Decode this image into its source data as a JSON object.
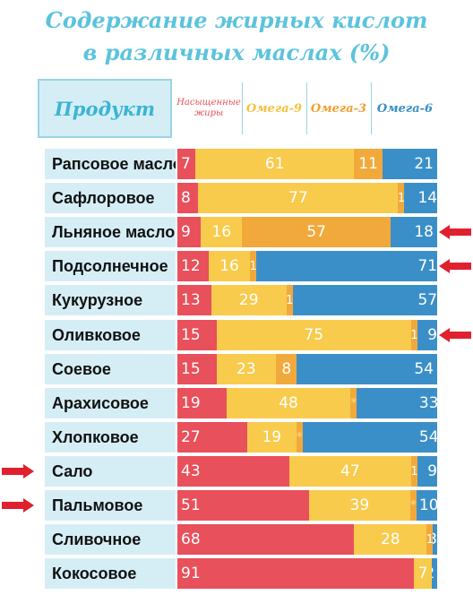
{
  "title_line1": "Содержание жирных кислот",
  "title_line2": "в различных маслах (%)",
  "headers": {
    "product": "Продукт",
    "saturated": "Насыщенные жиры",
    "omega9": "Омега-9",
    "omega3": "Омега-3",
    "omega6": "Омега-6"
  },
  "colors": {
    "saturated": "#e8505b",
    "omega9": "#f8cb4c",
    "omega3": "#f2a93b",
    "omega6": "#3a8fc8",
    "label_bg": "#d5eef6",
    "arrow": "#e0202e"
  },
  "chart_data": {
    "type": "bar",
    "stacked": true,
    "orientation": "horizontal",
    "categories": [
      "Рапсовое масло",
      "Сафлоровое",
      "Льняное масло",
      "Подсолнечное",
      "Кукурузное",
      "Оливковое",
      "Соевое",
      "Арахисовое",
      "Хлопковое",
      "Сало",
      "Пальмовое",
      "Сливочное",
      "Кокосовое"
    ],
    "series": [
      {
        "name": "Насыщенные жиры",
        "values": [
          7,
          8,
          9,
          12,
          13,
          15,
          15,
          19,
          27,
          43,
          51,
          68,
          91
        ]
      },
      {
        "name": "Омега-9",
        "values": [
          61,
          77,
          16,
          16,
          29,
          75,
          23,
          48,
          19,
          47,
          39,
          28,
          7
        ]
      },
      {
        "name": "Омега-3",
        "values": [
          11,
          1,
          57,
          1,
          1,
          1,
          8,
          0.5,
          0.5,
          1,
          0.5,
          1,
          0
        ]
      },
      {
        "name": "Омега-6",
        "values": [
          21,
          14,
          18,
          71,
          57,
          9,
          54,
          33,
          54,
          9,
          10,
          3,
          2
        ]
      }
    ],
    "segment_labels": [
      [
        "7",
        "61",
        "11",
        "21"
      ],
      [
        "8",
        "77",
        "1",
        "14"
      ],
      [
        "9",
        "16",
        "57",
        "18"
      ],
      [
        "12",
        "16",
        "1",
        "71"
      ],
      [
        "13",
        "29",
        "1",
        "57"
      ],
      [
        "15",
        "75",
        "1",
        "9"
      ],
      [
        "15",
        "23",
        "8",
        "54"
      ],
      [
        "19",
        "48",
        "*",
        "33"
      ],
      [
        "27",
        "19",
        "*",
        "54"
      ],
      [
        "43",
        "47",
        "1",
        "9"
      ],
      [
        "51",
        "39",
        "*",
        "10"
      ],
      [
        "68",
        "28",
        "1",
        "3"
      ],
      [
        "91",
        "7",
        "",
        "2"
      ]
    ],
    "highlighted": {
      "right": [
        "Льняное масло",
        "Подсолнечное",
        "Оливковое"
      ],
      "left": [
        "Сало",
        "Пальмовое"
      ]
    },
    "xlim": [
      0,
      100
    ]
  }
}
